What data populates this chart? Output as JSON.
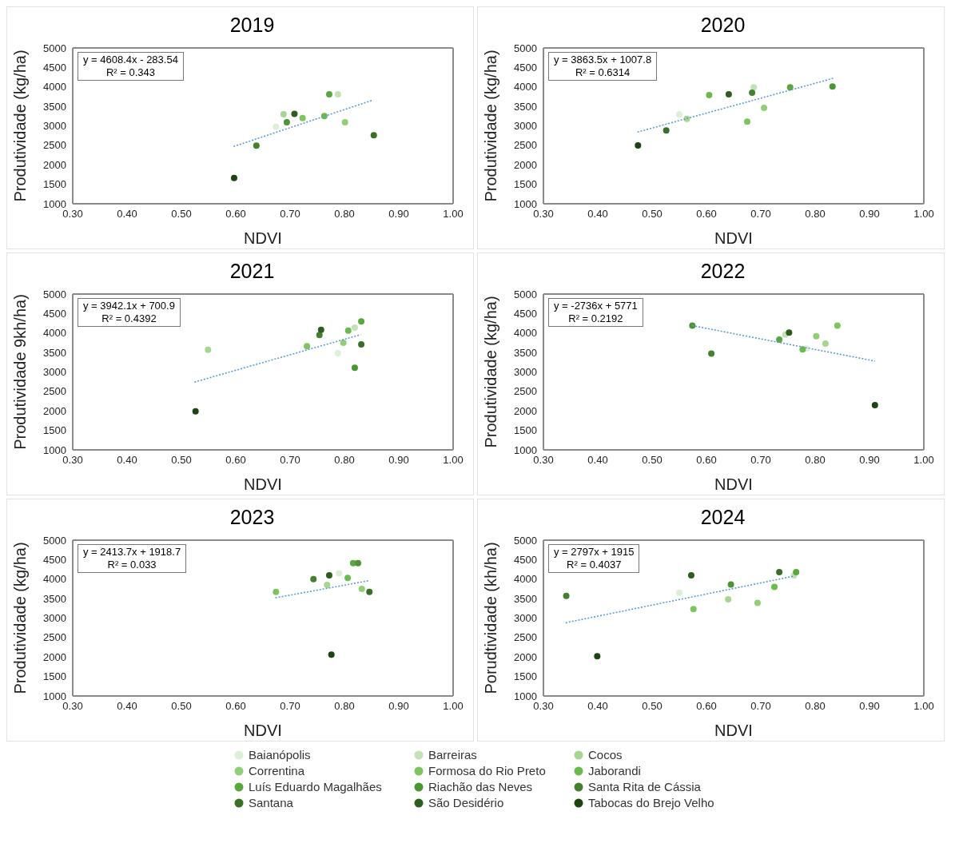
{
  "chart_data": [
    {
      "type": "scatter",
      "title": "2019",
      "xlabel": "NDVI",
      "ylabel": "Produtividade (kg/ha)",
      "xlim": [
        0.3,
        1.0
      ],
      "ylim": [
        1000,
        5000
      ],
      "xticks": [
        {
          "value": 0.3,
          "label": "0.30"
        },
        {
          "value": 0.4,
          "label": "0.40"
        },
        {
          "value": 0.5,
          "label": "0.50"
        },
        {
          "value": 0.6,
          "label": "0.60"
        },
        {
          "value": 0.7,
          "label": "0.70"
        },
        {
          "value": 0.8,
          "label": "0.80"
        },
        {
          "value": 0.9,
          "label": "0.90"
        },
        {
          "value": 1.0,
          "label": "1.00"
        }
      ],
      "yticks": [
        1000,
        1500,
        2000,
        2500,
        3000,
        3500,
        4000,
        4500,
        5000
      ],
      "grid": false,
      "marker": "circle",
      "legend": "bottom",
      "annotations": [
        "y = 4608.4x - 283.54",
        "R² = 0.343"
      ],
      "series": [
        {
          "name": "Baianópolis",
          "color": "#ddefd6",
          "x": [
            0.674
          ],
          "values": [
            2980
          ]
        },
        {
          "name": "Barreiras",
          "color": "#c3e2b5",
          "x": [
            0.788
          ],
          "values": [
            3810
          ]
        },
        {
          "name": "Cocos",
          "color": "#a6d690",
          "x": [
            0.688
          ],
          "values": [
            3300
          ]
        },
        {
          "name": "Correntina",
          "color": "#92cd78",
          "x": [
            0.801
          ],
          "values": [
            3090
          ]
        },
        {
          "name": "Formosa do Rio Preto",
          "color": "#7dc35f",
          "x": [
            0.723
          ],
          "values": [
            3200
          ]
        },
        {
          "name": "Jaborandi",
          "color": "#6cba4d",
          "x": [
            0.763
          ],
          "values": [
            3250
          ]
        },
        {
          "name": "Luís Eduardo Magalhães",
          "color": "#5ca63f",
          "x": [
            0.772
          ],
          "values": [
            3810
          ]
        },
        {
          "name": "Riachão das Neves",
          "color": "#4c9535",
          "x": [
            0.694
          ],
          "values": [
            3090
          ]
        },
        {
          "name": "Santa Rita de Cássia",
          "color": "#45802f",
          "x": [
            0.638
          ],
          "values": [
            2490
          ]
        },
        {
          "name": "Santana",
          "color": "#3a6f28",
          "x": [
            0.854
          ],
          "values": [
            2760
          ]
        },
        {
          "name": "São Desidério",
          "color": "#2d5e1e",
          "x": [
            0.708
          ],
          "values": [
            3310
          ]
        },
        {
          "name": "Tabocas do Brejo Velho",
          "color": "#1d4512",
          "x": [
            0.597
          ],
          "values": [
            1660
          ]
        },
        {
          "type": "line",
          "marker": "none",
          "color": "#5b9bd5",
          "line_style": "dotted",
          "x": [
            0.596,
            0.85
          ],
          "values": [
            2470,
            3650
          ]
        }
      ]
    },
    {
      "type": "scatter",
      "title": "2020",
      "xlabel": "NDVI",
      "ylabel": "Produtividade (kg/ha)",
      "xlim": [
        0.3,
        1.0
      ],
      "ylim": [
        1000,
        5000
      ],
      "xticks": [
        {
          "value": 0.3,
          "label": "0.30"
        },
        {
          "value": 0.4,
          "label": "0.40"
        },
        {
          "value": 0.5,
          "label": "0.50"
        },
        {
          "value": 0.6,
          "label": "0.60"
        },
        {
          "value": 0.7,
          "label": "0.70"
        },
        {
          "value": 0.8,
          "label": "0.80"
        },
        {
          "value": 0.9,
          "label": "0.90"
        },
        {
          "value": 1.0,
          "label": "1.00"
        }
      ],
      "yticks": [
        1000,
        1500,
        2000,
        2500,
        3000,
        3500,
        4000,
        4500,
        5000
      ],
      "grid": false,
      "marker": "circle",
      "annotations": [
        "y = 3863.5x + 1007.8",
        "R² = 0.6314"
      ],
      "series": [
        {
          "color": "#ddefd6",
          "x": [
            0.55
          ],
          "values": [
            3290
          ]
        },
        {
          "color": "#c3e2b5",
          "x": [
            0.687
          ],
          "values": [
            3990
          ]
        },
        {
          "color": "#a6d690",
          "x": [
            0.564
          ],
          "values": [
            3180
          ]
        },
        {
          "color": "#92cd78",
          "x": [
            0.706
          ],
          "values": [
            3460
          ]
        },
        {
          "color": "#7dc35f",
          "x": [
            0.675
          ],
          "values": [
            3110
          ]
        },
        {
          "color": "#6cba4d",
          "x": [
            0.605
          ],
          "values": [
            3790
          ]
        },
        {
          "color": "#5ca63f",
          "x": [
            0.754
          ],
          "values": [
            3990
          ]
        },
        {
          "color": "#4c9535",
          "x": [
            0.832
          ],
          "values": [
            4010
          ]
        },
        {
          "color": "#45802f",
          "x": [
            0.684
          ],
          "values": [
            3850
          ]
        },
        {
          "color": "#3a6f28",
          "x": [
            0.526
          ],
          "values": [
            2880
          ]
        },
        {
          "color": "#2d5e1e",
          "x": [
            0.641
          ],
          "values": [
            3810
          ]
        },
        {
          "color": "#1d4512",
          "x": [
            0.474
          ],
          "values": [
            2500
          ]
        },
        {
          "type": "line",
          "marker": "none",
          "color": "#5b9bd5",
          "line_style": "dotted",
          "x": [
            0.473,
            0.833
          ],
          "values": [
            2840,
            4220
          ]
        }
      ]
    },
    {
      "type": "scatter",
      "title": "2021",
      "xlabel": "NDVI",
      "ylabel": "Produtividade 9kh/ha)",
      "xlim": [
        0.3,
        1.0
      ],
      "ylim": [
        1000,
        5000
      ],
      "xticks": [
        {
          "value": 0.3,
          "label": "0.30"
        },
        {
          "value": 0.4,
          "label": "0.40"
        },
        {
          "value": 0.5,
          "label": "0.50"
        },
        {
          "value": 0.6,
          "label": "0.60"
        },
        {
          "value": 0.7,
          "label": "0.70"
        },
        {
          "value": 0.8,
          "label": "0.80"
        },
        {
          "value": 0.9,
          "label": "0.90"
        },
        {
          "value": 1.0,
          "label": "1.00"
        }
      ],
      "yticks": [
        1000,
        1500,
        2000,
        2500,
        3000,
        3500,
        4000,
        4500,
        5000
      ],
      "grid": false,
      "marker": "circle",
      "annotations": [
        "y = 3942.1x + 700.9",
        "R² = 0.4392"
      ],
      "series": [
        {
          "color": "#ddefd6",
          "x": [
            0.788
          ],
          "values": [
            3480
          ]
        },
        {
          "color": "#c3e2b5",
          "x": [
            0.819
          ],
          "values": [
            4140
          ]
        },
        {
          "color": "#a6d690",
          "x": [
            0.549
          ],
          "values": [
            3570
          ]
        },
        {
          "color": "#92cd78",
          "x": [
            0.798
          ],
          "values": [
            3750
          ]
        },
        {
          "color": "#7dc35f",
          "x": [
            0.731
          ],
          "values": [
            3660
          ]
        },
        {
          "color": "#6cba4d",
          "x": [
            0.807
          ],
          "values": [
            4060
          ]
        },
        {
          "color": "#5ca63f",
          "x": [
            0.831
          ],
          "values": [
            4300
          ]
        },
        {
          "color": "#4c9535",
          "x": [
            0.819
          ],
          "values": [
            3110
          ]
        },
        {
          "color": "#45802f",
          "x": [
            0.754
          ],
          "values": [
            3950
          ]
        },
        {
          "color": "#3a6f28",
          "x": [
            0.831
          ],
          "values": [
            3710
          ]
        },
        {
          "color": "#2d5e1e",
          "x": [
            0.757
          ],
          "values": [
            4080
          ]
        },
        {
          "color": "#1d4512",
          "x": [
            0.526
          ],
          "values": [
            1990
          ]
        },
        {
          "type": "line",
          "marker": "none",
          "color": "#5b9bd5",
          "line_style": "dotted",
          "x": [
            0.524,
            0.83
          ],
          "values": [
            2740,
            3960
          ]
        }
      ]
    },
    {
      "type": "scatter",
      "title": "2022",
      "xlabel": "NDVI",
      "ylabel": "Produtividade (kg/ha)",
      "xlim": [
        0.3,
        1.0
      ],
      "ylim": [
        1000,
        5000
      ],
      "xticks": [
        {
          "value": 0.3,
          "label": "0.30"
        },
        {
          "value": 0.4,
          "label": "0.40"
        },
        {
          "value": 0.5,
          "label": "0.50"
        },
        {
          "value": 0.6,
          "label": "0.60"
        },
        {
          "value": 0.7,
          "label": "0.70"
        },
        {
          "value": 0.8,
          "label": "0.80"
        },
        {
          "value": 0.9,
          "label": "0.90"
        },
        {
          "value": 1.0,
          "label": "1.00"
        }
      ],
      "yticks": [
        1000,
        1500,
        2000,
        2500,
        3000,
        3500,
        4000,
        4500,
        5000
      ],
      "grid": false,
      "marker": "circle",
      "annotations": [
        "y = -2736x + 5771",
        "R² = 0.2192"
      ],
      "series": [
        {
          "color": "#ddefd6",
          "x": [
            0.784
          ],
          "values": [
            3600
          ]
        },
        {
          "color": "#c3e2b5",
          "x": [
            0.745
          ],
          "values": [
            3960
          ]
        },
        {
          "color": "#a6d690",
          "x": [
            0.819
          ],
          "values": [
            3730
          ]
        },
        {
          "color": "#92cd78",
          "x": [
            0.802
          ],
          "values": [
            3920
          ]
        },
        {
          "color": "#7dc35f",
          "x": [
            0.841
          ],
          "values": [
            4190
          ]
        },
        {
          "color": "#6cba4d",
          "x": [
            0.777
          ],
          "values": [
            3580
          ]
        },
        {
          "color": "#5ca63f",
          "x": [
            0.734
          ],
          "values": [
            3830
          ]
        },
        {
          "color": "#4c9535",
          "x": [
            0.574
          ],
          "values": [
            4190
          ]
        },
        {
          "color": "#45802f",
          "x": [
            0.609
          ],
          "values": [
            3470
          ]
        },
        {
          "color": "#3a6f28",
          "x": [
            null
          ],
          "values": [
            null
          ]
        },
        {
          "color": "#2d5e1e",
          "x": [
            0.752
          ],
          "values": [
            4010
          ]
        },
        {
          "color": "#1d4512",
          "x": [
            0.91
          ],
          "values": [
            2150
          ]
        },
        {
          "type": "line",
          "marker": "none",
          "color": "#5b9bd5",
          "line_style": "dotted",
          "x": [
            0.574,
            0.91
          ],
          "values": [
            4190,
            3280
          ]
        }
      ]
    },
    {
      "type": "scatter",
      "title": "2023",
      "xlabel": "NDVI",
      "ylabel": "Produtividade (kg/ha)",
      "xlim": [
        0.3,
        1.0
      ],
      "ylim": [
        1000,
        5000
      ],
      "xticks": [
        {
          "value": 0.3,
          "label": "0.30"
        },
        {
          "value": 0.4,
          "label": "0.40"
        },
        {
          "value": 0.5,
          "label": "0.50"
        },
        {
          "value": 0.6,
          "label": "0.60"
        },
        {
          "value": 0.7,
          "label": "0.70"
        },
        {
          "value": 0.8,
          "label": "0.80"
        },
        {
          "value": 0.9,
          "label": "0.90"
        },
        {
          "value": 1.0,
          "label": "1.00"
        }
      ],
      "yticks": [
        1000,
        1500,
        2000,
        2500,
        3000,
        3500,
        4000,
        4500,
        5000
      ],
      "grid": false,
      "marker": "circle",
      "annotations": [
        "y = 2413.7x + 1918.7",
        "R² = 0.033"
      ],
      "series": [
        {
          "color": "#ddefd6",
          "x": [
            0.79
          ],
          "values": [
            4150
          ]
        },
        {
          "color": "#c3e2b5",
          "x": [
            null
          ],
          "values": [
            null
          ]
        },
        {
          "color": "#a6d690",
          "x": [
            0.768
          ],
          "values": [
            3850
          ]
        },
        {
          "color": "#92cd78",
          "x": [
            0.832
          ],
          "values": [
            3750
          ]
        },
        {
          "color": "#7dc35f",
          "x": [
            0.674
          ],
          "values": [
            3670
          ]
        },
        {
          "color": "#6cba4d",
          "x": [
            0.806
          ],
          "values": [
            4030
          ]
        },
        {
          "color": "#5ca63f",
          "x": [
            0.816
          ],
          "values": [
            4410
          ]
        },
        {
          "color": "#4c9535",
          "x": [
            0.825
          ],
          "values": [
            4410
          ]
        },
        {
          "color": "#45802f",
          "x": [
            0.743
          ],
          "values": [
            4000
          ]
        },
        {
          "color": "#3a6f28",
          "x": [
            0.846
          ],
          "values": [
            3670
          ]
        },
        {
          "color": "#2d5e1e",
          "x": [
            0.772
          ],
          "values": [
            4100
          ]
        },
        {
          "color": "#1d4512",
          "x": [
            0.776
          ],
          "values": [
            2060
          ]
        },
        {
          "type": "line",
          "marker": "none",
          "color": "#5b9bd5",
          "line_style": "dotted",
          "x": [
            0.673,
            0.845
          ],
          "values": [
            3520,
            3960
          ]
        }
      ]
    },
    {
      "type": "scatter",
      "title": "2024",
      "xlabel": "NDVI",
      "ylabel": "Porudtividade (kh/ha)",
      "xlim": [
        0.3,
        1.0
      ],
      "ylim": [
        1000,
        5000
      ],
      "xticks": [
        {
          "value": 0.3,
          "label": "0.30"
        },
        {
          "value": 0.4,
          "label": "0.40"
        },
        {
          "value": 0.5,
          "label": "0.50"
        },
        {
          "value": 0.6,
          "label": "0.60"
        },
        {
          "value": 0.7,
          "label": "0.70"
        },
        {
          "value": 0.8,
          "label": "0.80"
        },
        {
          "value": 0.9,
          "label": "0.90"
        },
        {
          "value": 1.0,
          "label": "1.00"
        }
      ],
      "yticks": [
        1000,
        1500,
        2000,
        2500,
        3000,
        3500,
        4000,
        4500,
        5000
      ],
      "grid": false,
      "marker": "circle",
      "annotations": [
        "y = 2797x + 1915",
        "R² = 0.4037"
      ],
      "series": [
        {
          "color": "#ddefd6",
          "x": [
            0.55
          ],
          "values": [
            3650
          ]
        },
        {
          "color": "#c3e2b5",
          "x": [
            0.761
          ],
          "values": [
            4090
          ]
        },
        {
          "color": "#a6d690",
          "x": [
            0.64
          ],
          "values": [
            3480
          ]
        },
        {
          "color": "#92cd78",
          "x": [
            0.694
          ],
          "values": [
            3390
          ]
        },
        {
          "color": "#7dc35f",
          "x": [
            0.576
          ],
          "values": [
            3230
          ]
        },
        {
          "color": "#6cba4d",
          "x": [
            0.725
          ],
          "values": [
            3800
          ]
        },
        {
          "color": "#5ca63f",
          "x": [
            0.765
          ],
          "values": [
            4180
          ]
        },
        {
          "color": "#4c9535",
          "x": [
            0.645
          ],
          "values": [
            3860
          ]
        },
        {
          "color": "#45802f",
          "x": [
            0.342
          ],
          "values": [
            3570
          ]
        },
        {
          "color": "#3a6f28",
          "x": [
            0.734
          ],
          "values": [
            4180
          ]
        },
        {
          "color": "#2d5e1e",
          "x": [
            0.572
          ],
          "values": [
            4100
          ]
        },
        {
          "color": "#1d4512",
          "x": [
            0.399
          ],
          "values": [
            2020
          ]
        },
        {
          "type": "line",
          "marker": "none",
          "color": "#5b9bd5",
          "line_style": "dotted",
          "x": [
            0.341,
            0.762
          ],
          "values": [
            2880,
            4080
          ]
        }
      ]
    }
  ]
}
